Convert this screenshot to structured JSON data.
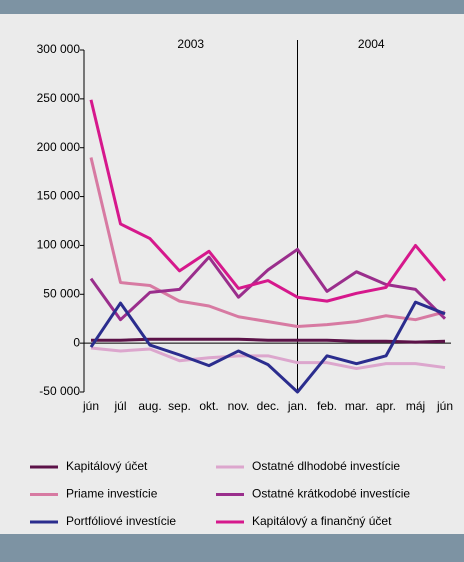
{
  "chart_data": {
    "type": "line",
    "year_labels": [
      "2003",
      "2004"
    ],
    "categories": [
      "jún",
      "júl",
      "aug.",
      "sep.",
      "okt.",
      "nov.",
      "dec.",
      "jan.",
      "feb.",
      "mar.",
      "apr.",
      "máj",
      "jún"
    ],
    "ylim": [
      -50000,
      300000
    ],
    "yticks": [
      {
        "value": -50000,
        "label": "-50 000"
      },
      0,
      {
        "value": 50000,
        "label": "50 000"
      },
      {
        "value": 100000,
        "label": "100 000"
      },
      {
        "value": 150000,
        "label": "150 000"
      },
      {
        "value": 200000,
        "label": "200 000"
      },
      {
        "value": 250000,
        "label": "250 000"
      },
      {
        "value": 300000,
        "label": "300 000"
      }
    ],
    "series": [
      {
        "name": "Kapitálový účet",
        "color": "#5c1248",
        "values": [
          3000,
          3000,
          4000,
          4000,
          4000,
          4000,
          3000,
          3000,
          3000,
          2000,
          2000,
          1000,
          2000
        ]
      },
      {
        "name": "Ostatné dlhodobé investície",
        "color": "#dca6cd",
        "values": [
          -5000,
          -8000,
          -6000,
          -18000,
          -15000,
          -13000,
          -13000,
          -20000,
          -20000,
          -26000,
          -21000,
          -21000,
          -25000
        ]
      },
      {
        "name": "Priame investície",
        "color": "#d77aa2",
        "values": [
          190000,
          62000,
          59000,
          43000,
          38000,
          27000,
          22000,
          17000,
          19000,
          22000,
          28000,
          24000,
          32000
        ]
      },
      {
        "name": "Ostatné krátkodobé investície",
        "color": "#9a2e8c",
        "values": [
          66000,
          24000,
          52000,
          55000,
          88000,
          47000,
          75000,
          96000,
          53000,
          73000,
          60000,
          55000,
          25000
        ]
      },
      {
        "name": "Portfóliové investície",
        "color": "#2b2d8e",
        "values": [
          -4000,
          41000,
          -2000,
          -12000,
          -23000,
          -8000,
          -22000,
          -50000,
          -13000,
          -21000,
          -13000,
          42000,
          30000
        ]
      },
      {
        "name": "Kapitálový a finančný účet",
        "color": "#d6188c",
        "values": [
          249000,
          122000,
          107000,
          74000,
          94000,
          56000,
          64000,
          47000,
          43000,
          51000,
          57000,
          100000,
          64000
        ]
      }
    ]
  }
}
